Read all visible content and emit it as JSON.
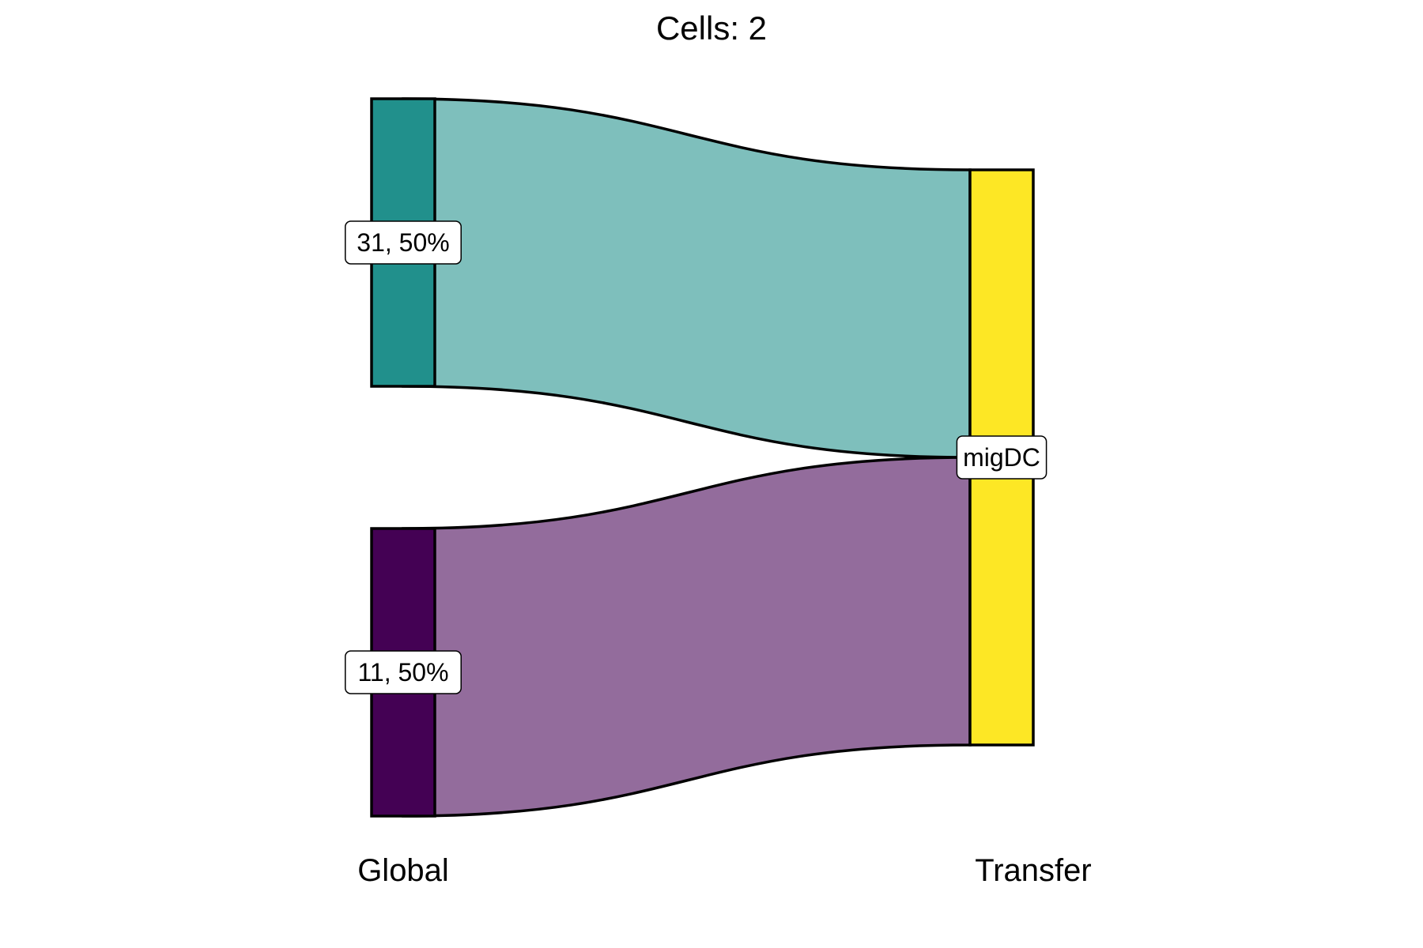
{
  "chart_data": {
    "type": "alluvial",
    "title": "Cells:  2",
    "axes": [
      "Global",
      "Transfer"
    ],
    "global_strata": [
      {
        "label": "31, 50%",
        "color": "#21908C",
        "value": 1
      },
      {
        "label": "11, 50%",
        "color": "#440154",
        "value": 1
      }
    ],
    "transfer_strata": [
      {
        "label": "migDC",
        "color": "#FDE725",
        "value": 2
      }
    ],
    "flows": [
      {
        "from": "31, 50%",
        "to": "migDC",
        "value": 1,
        "color": "#21908C"
      },
      {
        "from": "11, 50%",
        "to": "migDC",
        "value": 1,
        "color": "#440154"
      }
    ],
    "flow_opacity": 0.58
  }
}
